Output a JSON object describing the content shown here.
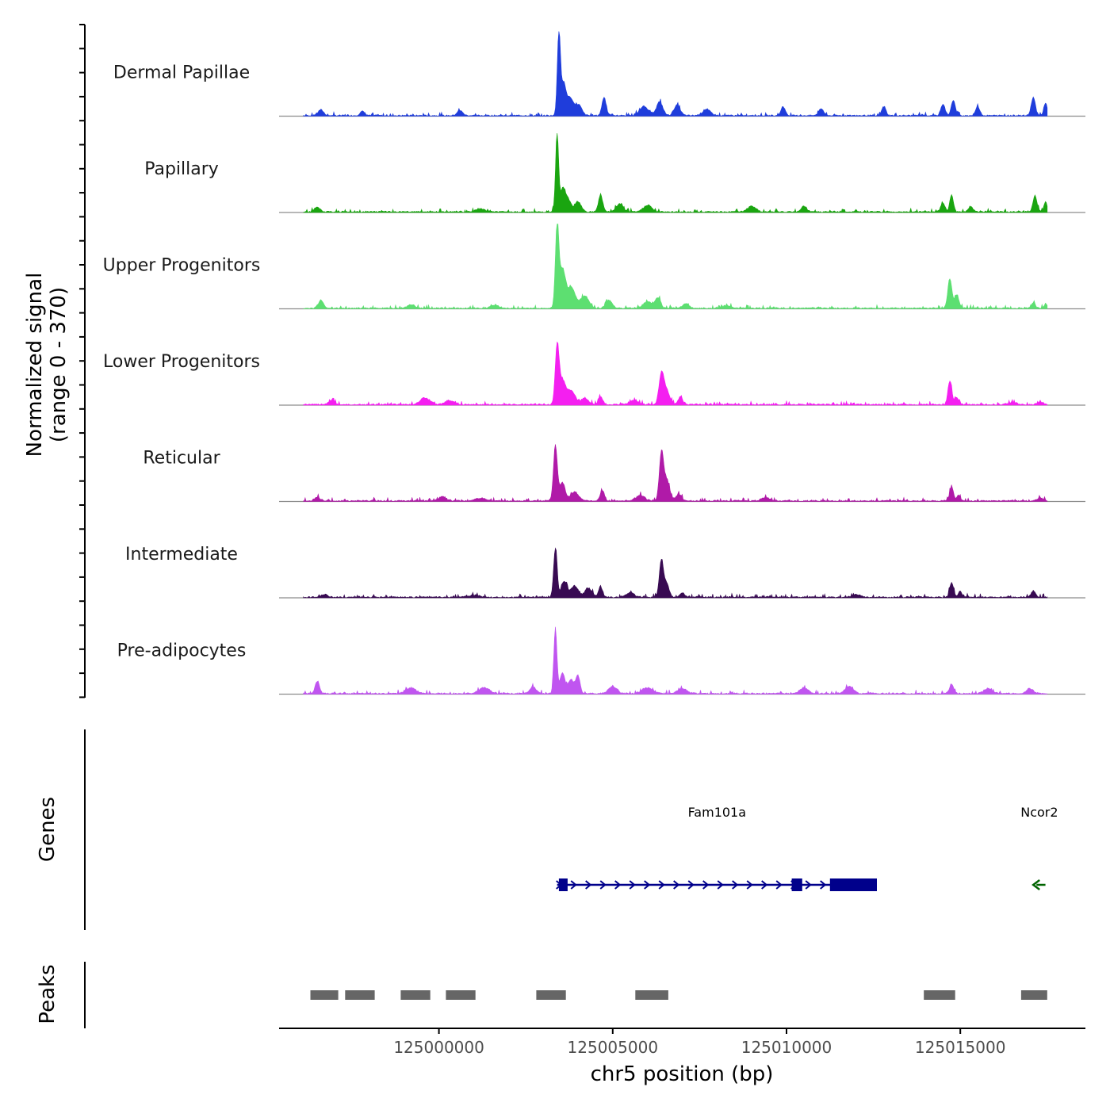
{
  "chart_data": {
    "type": "area",
    "title": "",
    "chromosome": "chr5",
    "xlabel": "chr5 position (bp)",
    "ylabel": "Normalized signal",
    "ylabel_range": "(range 0 - 370)",
    "ylim": [
      0,
      370
    ],
    "xlim": [
      124995400,
      125018600
    ],
    "data_xlim": [
      124996100,
      125017500
    ],
    "x_ticks": [
      125000000,
      125005000,
      125010000,
      125015000
    ],
    "x_tick_labels": [
      "125000000",
      "125005000",
      "125010000",
      "125015000"
    ],
    "tracks": [
      {
        "name": "Dermal Papillae",
        "color": "#1f3ddb",
        "peaks": [
          {
            "center": 125003450,
            "height": 370,
            "width": 45
          },
          {
            "center": 125003580,
            "height": 120,
            "width": 60
          },
          {
            "center": 125003750,
            "height": 80,
            "width": 110
          },
          {
            "center": 125004020,
            "height": 45,
            "width": 90
          },
          {
            "center": 125004750,
            "height": 80,
            "width": 60
          },
          {
            "center": 125005900,
            "height": 40,
            "width": 120
          },
          {
            "center": 125006350,
            "height": 60,
            "width": 90
          },
          {
            "center": 125006850,
            "height": 45,
            "width": 90
          },
          {
            "center": 125007700,
            "height": 25,
            "width": 120
          },
          {
            "center": 125009900,
            "height": 40,
            "width": 60
          },
          {
            "center": 125011000,
            "height": 30,
            "width": 70
          },
          {
            "center": 125012800,
            "height": 40,
            "width": 60
          },
          {
            "center": 125014500,
            "height": 50,
            "width": 60
          },
          {
            "center": 125014800,
            "height": 65,
            "width": 60
          },
          {
            "center": 125015500,
            "height": 40,
            "width": 60
          },
          {
            "center": 125017100,
            "height": 80,
            "width": 60
          },
          {
            "center": 125017450,
            "height": 55,
            "width": 50
          },
          {
            "center": 124996600,
            "height": 25,
            "width": 80
          },
          {
            "center": 124997800,
            "height": 18,
            "width": 70
          },
          {
            "center": 125000600,
            "height": 22,
            "width": 80
          }
        ]
      },
      {
        "name": "Papillary",
        "color": "#1aa510",
        "peaks": [
          {
            "center": 125003400,
            "height": 340,
            "width": 45
          },
          {
            "center": 125003560,
            "height": 90,
            "width": 60
          },
          {
            "center": 125003700,
            "height": 60,
            "width": 90
          },
          {
            "center": 125004000,
            "height": 45,
            "width": 90
          },
          {
            "center": 125004650,
            "height": 75,
            "width": 60
          },
          {
            "center": 125005200,
            "height": 35,
            "width": 100
          },
          {
            "center": 125006000,
            "height": 30,
            "width": 120
          },
          {
            "center": 125009000,
            "height": 25,
            "width": 120
          },
          {
            "center": 125010500,
            "height": 25,
            "width": 80
          },
          {
            "center": 125014500,
            "height": 40,
            "width": 60
          },
          {
            "center": 125014750,
            "height": 75,
            "width": 50
          },
          {
            "center": 125015300,
            "height": 25,
            "width": 60
          },
          {
            "center": 125017150,
            "height": 70,
            "width": 60
          },
          {
            "center": 125017450,
            "height": 45,
            "width": 45
          },
          {
            "center": 124996500,
            "height": 20,
            "width": 80
          },
          {
            "center": 125001200,
            "height": 14,
            "width": 120
          }
        ]
      },
      {
        "name": "Upper Progenitors",
        "color": "#5ddf71",
        "peaks": [
          {
            "center": 125003400,
            "height": 360,
            "width": 50
          },
          {
            "center": 125003550,
            "height": 160,
            "width": 80
          },
          {
            "center": 125003800,
            "height": 90,
            "width": 130
          },
          {
            "center": 125004200,
            "height": 55,
            "width": 110
          },
          {
            "center": 125004900,
            "height": 35,
            "width": 90
          },
          {
            "center": 125006000,
            "height": 30,
            "width": 120
          },
          {
            "center": 125006300,
            "height": 45,
            "width": 80
          },
          {
            "center": 125007100,
            "height": 20,
            "width": 90
          },
          {
            "center": 125008300,
            "height": 12,
            "width": 120
          },
          {
            "center": 125014700,
            "height": 130,
            "width": 60
          },
          {
            "center": 125014900,
            "height": 60,
            "width": 60
          },
          {
            "center": 125017100,
            "height": 25,
            "width": 60
          },
          {
            "center": 125017450,
            "height": 20,
            "width": 45
          },
          {
            "center": 124996600,
            "height": 35,
            "width": 70
          },
          {
            "center": 124999200,
            "height": 16,
            "width": 120
          },
          {
            "center": 125001600,
            "height": 14,
            "width": 120
          }
        ]
      },
      {
        "name": "Lower Progenitors",
        "color": "#f41ff0",
        "peaks": [
          {
            "center": 125003400,
            "height": 250,
            "width": 55
          },
          {
            "center": 125003550,
            "height": 100,
            "width": 90
          },
          {
            "center": 125003800,
            "height": 60,
            "width": 120
          },
          {
            "center": 125004200,
            "height": 30,
            "width": 100
          },
          {
            "center": 125004650,
            "height": 35,
            "width": 60
          },
          {
            "center": 125006400,
            "height": 130,
            "width": 70
          },
          {
            "center": 125006550,
            "height": 60,
            "width": 90
          },
          {
            "center": 125006950,
            "height": 35,
            "width": 60
          },
          {
            "center": 125005600,
            "height": 18,
            "width": 120
          },
          {
            "center": 125014700,
            "height": 105,
            "width": 55
          },
          {
            "center": 125014900,
            "height": 30,
            "width": 60
          },
          {
            "center": 124999600,
            "height": 30,
            "width": 140
          },
          {
            "center": 125000300,
            "height": 18,
            "width": 120
          },
          {
            "center": 124996900,
            "height": 16,
            "width": 90
          },
          {
            "center": 125016500,
            "height": 10,
            "width": 120
          },
          {
            "center": 125017300,
            "height": 12,
            "width": 80
          }
        ]
      },
      {
        "name": "Reticular",
        "color": "#b01aa8",
        "peaks": [
          {
            "center": 125003350,
            "height": 240,
            "width": 55
          },
          {
            "center": 125003550,
            "height": 80,
            "width": 80
          },
          {
            "center": 125003900,
            "height": 40,
            "width": 110
          },
          {
            "center": 125004700,
            "height": 45,
            "width": 60
          },
          {
            "center": 125006400,
            "height": 200,
            "width": 60
          },
          {
            "center": 125006550,
            "height": 90,
            "width": 90
          },
          {
            "center": 125006900,
            "height": 30,
            "width": 80
          },
          {
            "center": 125005800,
            "height": 25,
            "width": 120
          },
          {
            "center": 125014750,
            "height": 60,
            "width": 55
          },
          {
            "center": 125014950,
            "height": 25,
            "width": 55
          },
          {
            "center": 124996500,
            "height": 16,
            "width": 80
          },
          {
            "center": 125000100,
            "height": 20,
            "width": 100
          },
          {
            "center": 125001200,
            "height": 12,
            "width": 140
          },
          {
            "center": 125009400,
            "height": 14,
            "width": 120
          },
          {
            "center": 125017300,
            "height": 14,
            "width": 80
          }
        ]
      },
      {
        "name": "Intermediate",
        "color": "#380a52",
        "peaks": [
          {
            "center": 125003350,
            "height": 215,
            "width": 50
          },
          {
            "center": 125003600,
            "height": 70,
            "width": 80
          },
          {
            "center": 125003900,
            "height": 50,
            "width": 110
          },
          {
            "center": 125004300,
            "height": 40,
            "width": 100
          },
          {
            "center": 125004650,
            "height": 45,
            "width": 60
          },
          {
            "center": 125006400,
            "height": 160,
            "width": 60
          },
          {
            "center": 125006550,
            "height": 60,
            "width": 70
          },
          {
            "center": 125005500,
            "height": 20,
            "width": 120
          },
          {
            "center": 125007000,
            "height": 18,
            "width": 80
          },
          {
            "center": 125014750,
            "height": 65,
            "width": 55
          },
          {
            "center": 125015000,
            "height": 25,
            "width": 55
          },
          {
            "center": 125017100,
            "height": 28,
            "width": 60
          },
          {
            "center": 124996700,
            "height": 12,
            "width": 90
          },
          {
            "center": 125001000,
            "height": 10,
            "width": 140
          },
          {
            "center": 125012000,
            "height": 12,
            "width": 120
          }
        ]
      },
      {
        "name": "Pre-adipocytes",
        "color": "#c055f0",
        "peaks": [
          {
            "center": 125003350,
            "height": 280,
            "width": 45
          },
          {
            "center": 125003550,
            "height": 90,
            "width": 70
          },
          {
            "center": 125003800,
            "height": 60,
            "width": 90
          },
          {
            "center": 125004000,
            "height": 75,
            "width": 60
          },
          {
            "center": 125005000,
            "height": 30,
            "width": 120
          },
          {
            "center": 125006000,
            "height": 25,
            "width": 160
          },
          {
            "center": 125007000,
            "height": 20,
            "width": 140
          },
          {
            "center": 124996500,
            "height": 55,
            "width": 60
          },
          {
            "center": 124999200,
            "height": 25,
            "width": 140
          },
          {
            "center": 125001300,
            "height": 25,
            "width": 160
          },
          {
            "center": 125002700,
            "height": 30,
            "width": 90
          },
          {
            "center": 125010500,
            "height": 25,
            "width": 120
          },
          {
            "center": 125011800,
            "height": 30,
            "width": 120
          },
          {
            "center": 125014750,
            "height": 40,
            "width": 60
          },
          {
            "center": 125015800,
            "height": 22,
            "width": 120
          },
          {
            "center": 125017000,
            "height": 22,
            "width": 100
          }
        ]
      }
    ],
    "genes": {
      "label": "Genes",
      "items": [
        {
          "name": "Fam101a",
          "strand": "+",
          "start": 125003400,
          "end": 125012600,
          "color": "#00008b",
          "exons": [
            [
              125003450,
              125003700
            ],
            [
              125010150,
              125010450
            ],
            [
              125011250,
              125012600
            ]
          ]
        },
        {
          "name": "Ncor2",
          "strand": "-",
          "start": 125017100,
          "end": 125017450,
          "color": "#006400",
          "exons": []
        }
      ]
    },
    "peaks_track": {
      "label": "Peaks",
      "color": "#666666",
      "regions": [
        [
          124996300,
          124997100
        ],
        [
          124997300,
          124998150
        ],
        [
          124998900,
          124999750
        ],
        [
          125000200,
          125001050
        ],
        [
          125002800,
          125003650
        ],
        [
          125005650,
          125006600
        ],
        [
          125013950,
          125014850
        ],
        [
          125016750,
          125017500
        ]
      ]
    }
  }
}
